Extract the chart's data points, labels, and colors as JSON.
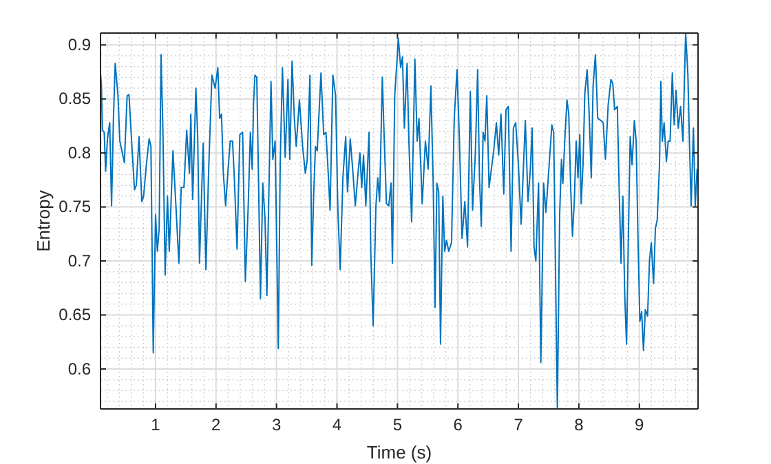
{
  "chart_data": {
    "type": "line",
    "xlabel": "Time (s)",
    "ylabel": "Entropy",
    "xlim": [
      0.09,
      9.97
    ],
    "ylim": [
      0.563,
      0.911
    ],
    "xticks": [
      1,
      2,
      3,
      4,
      5,
      6,
      7,
      8,
      9
    ],
    "yticks": [
      0.6,
      0.65,
      0.7,
      0.75,
      0.8,
      0.85,
      0.9
    ],
    "grid": true,
    "marker": "none",
    "line_style": "solid",
    "series": [
      {
        "color": "#0072bd",
        "x": [
          0.09,
          0.106,
          0.121,
          0.152,
          0.174,
          0.205,
          0.242,
          0.273,
          0.303,
          0.333,
          0.379,
          0.409,
          0.485,
          0.53,
          0.561,
          0.606,
          0.652,
          0.682,
          0.727,
          0.773,
          0.803,
          0.848,
          0.894,
          0.924,
          0.962,
          1.0,
          1.03,
          1.06,
          1.091,
          1.121,
          1.159,
          1.197,
          1.227,
          1.288,
          1.333,
          1.386,
          1.424,
          1.47,
          1.515,
          1.561,
          1.583,
          1.614,
          1.667,
          1.697,
          1.727,
          1.788,
          1.833,
          1.879,
          1.932,
          1.985,
          2.03,
          2.06,
          2.091,
          2.121,
          2.159,
          2.197,
          2.235,
          2.273,
          2.303,
          2.348,
          2.394,
          2.44,
          2.485,
          2.53,
          2.568,
          2.598,
          2.621,
          2.644,
          2.674,
          2.705,
          2.735,
          2.773,
          2.811,
          2.841,
          2.871,
          2.909,
          2.939,
          2.977,
          3.03,
          3.061,
          3.098,
          3.144,
          3.189,
          3.22,
          3.258,
          3.295,
          3.326,
          3.379,
          3.432,
          3.477,
          3.508,
          3.553,
          3.583,
          3.614,
          3.644,
          3.674,
          3.735,
          3.78,
          3.818,
          3.848,
          3.886,
          3.932,
          3.977,
          4.015,
          4.053,
          4.098,
          4.144,
          4.174,
          4.22,
          4.265,
          4.303,
          4.341,
          4.379,
          4.409,
          4.439,
          4.477,
          4.53,
          4.561,
          4.598,
          4.644,
          4.674,
          4.705,
          4.75,
          4.78,
          4.818,
          4.856,
          4.894,
          4.917,
          4.955,
          5.015,
          5.053,
          5.083,
          5.114,
          5.159,
          5.189,
          5.235,
          5.288,
          5.326,
          5.356,
          5.409,
          5.462,
          5.508,
          5.553,
          5.591,
          5.621,
          5.652,
          5.682,
          5.712,
          5.75,
          5.78,
          5.811,
          5.848,
          5.894,
          5.939,
          5.985,
          6.023,
          6.068,
          6.114,
          6.159,
          6.205,
          6.242,
          6.288,
          6.326,
          6.356,
          6.386,
          6.417,
          6.447,
          6.477,
          6.515,
          6.553,
          6.591,
          6.636,
          6.674,
          6.712,
          6.758,
          6.795,
          6.833,
          6.879,
          6.917,
          6.955,
          7.0,
          7.045,
          7.076,
          7.114,
          7.159,
          7.197,
          7.227,
          7.258,
          7.288,
          7.333,
          7.371,
          7.417,
          7.455,
          7.553,
          7.583,
          7.644,
          7.682,
          7.712,
          7.735,
          7.773,
          7.803,
          7.833,
          7.864,
          7.894,
          7.924,
          7.955,
          7.985,
          8.015,
          8.038,
          8.068,
          8.098,
          8.136,
          8.167,
          8.205,
          8.235,
          8.273,
          8.311,
          8.364,
          8.402,
          8.439,
          8.485,
          8.53,
          8.561,
          8.591,
          8.636,
          8.667,
          8.697,
          8.727,
          8.758,
          8.788,
          8.818,
          8.848,
          8.879,
          8.917,
          8.947,
          8.977,
          9.008,
          9.038,
          9.068,
          9.098,
          9.136,
          9.167,
          9.197,
          9.235,
          9.265,
          9.295,
          9.333,
          9.356,
          9.379,
          9.409,
          9.447,
          9.477,
          9.508,
          9.545,
          9.576,
          9.606,
          9.644,
          9.682,
          9.72,
          9.765,
          9.803,
          9.826,
          9.856,
          9.894,
          9.924,
          9.955,
          9.97
        ],
        "values": [
          0.874,
          0.862,
          0.821,
          0.819,
          0.783,
          0.813,
          0.828,
          0.751,
          0.83,
          0.883,
          0.853,
          0.811,
          0.791,
          0.853,
          0.854,
          0.809,
          0.766,
          0.77,
          0.815,
          0.755,
          0.76,
          0.789,
          0.813,
          0.806,
          0.615,
          0.743,
          0.709,
          0.73,
          0.891,
          0.823,
          0.687,
          0.76,
          0.709,
          0.802,
          0.755,
          0.698,
          0.768,
          0.768,
          0.821,
          0.781,
          0.836,
          0.757,
          0.86,
          0.815,
          0.698,
          0.809,
          0.692,
          0.785,
          0.872,
          0.86,
          0.879,
          0.832,
          0.836,
          0.781,
          0.751,
          0.783,
          0.811,
          0.811,
          0.777,
          0.711,
          0.817,
          0.819,
          0.681,
          0.747,
          0.819,
          0.785,
          0.847,
          0.872,
          0.87,
          0.768,
          0.665,
          0.772,
          0.738,
          0.668,
          0.755,
          0.866,
          0.794,
          0.811,
          0.619,
          0.789,
          0.879,
          0.796,
          0.868,
          0.794,
          0.885,
          0.832,
          0.806,
          0.849,
          0.806,
          0.781,
          0.794,
          0.872,
          0.696,
          0.76,
          0.806,
          0.802,
          0.874,
          0.817,
          0.819,
          0.789,
          0.747,
          0.872,
          0.853,
          0.747,
          0.692,
          0.777,
          0.815,
          0.764,
          0.813,
          0.781,
          0.751,
          0.777,
          0.8,
          0.768,
          0.798,
          0.751,
          0.819,
          0.704,
          0.64,
          0.751,
          0.777,
          0.755,
          0.87,
          0.815,
          0.753,
          0.751,
          0.772,
          0.698,
          0.853,
          0.906,
          0.879,
          0.889,
          0.823,
          0.883,
          0.811,
          0.736,
          0.887,
          0.811,
          0.832,
          0.753,
          0.811,
          0.785,
          0.862,
          0.772,
          0.657,
          0.772,
          0.764,
          0.623,
          0.76,
          0.709,
          0.719,
          0.709,
          0.717,
          0.832,
          0.877,
          0.815,
          0.721,
          0.755,
          0.713,
          0.857,
          0.747,
          0.8,
          0.877,
          0.777,
          0.732,
          0.819,
          0.811,
          0.853,
          0.768,
          0.785,
          0.802,
          0.828,
          0.798,
          0.836,
          0.762,
          0.84,
          0.843,
          0.709,
          0.823,
          0.828,
          0.789,
          0.734,
          0.777,
          0.83,
          0.755,
          0.785,
          0.823,
          0.713,
          0.7,
          0.772,
          0.606,
          0.772,
          0.745,
          0.826,
          0.819,
          0.563,
          0.743,
          0.794,
          0.772,
          0.819,
          0.849,
          0.836,
          0.768,
          0.723,
          0.755,
          0.811,
          0.777,
          0.817,
          0.753,
          0.789,
          0.855,
          0.877,
          0.84,
          0.777,
          0.862,
          0.891,
          0.832,
          0.83,
          0.828,
          0.794,
          0.845,
          0.868,
          0.864,
          0.84,
          0.843,
          0.764,
          0.698,
          0.76,
          0.668,
          0.623,
          0.721,
          0.815,
          0.789,
          0.83,
          0.811,
          0.721,
          0.644,
          0.653,
          0.617,
          0.655,
          0.649,
          0.7,
          0.717,
          0.679,
          0.73,
          0.738,
          0.789,
          0.866,
          0.811,
          0.828,
          0.792,
          0.811,
          0.811,
          0.874,
          0.826,
          0.858,
          0.823,
          0.843,
          0.811,
          0.911,
          0.872,
          0.815,
          0.751,
          0.823,
          0.751,
          0.785,
          0.777
        ]
      }
    ]
  }
}
